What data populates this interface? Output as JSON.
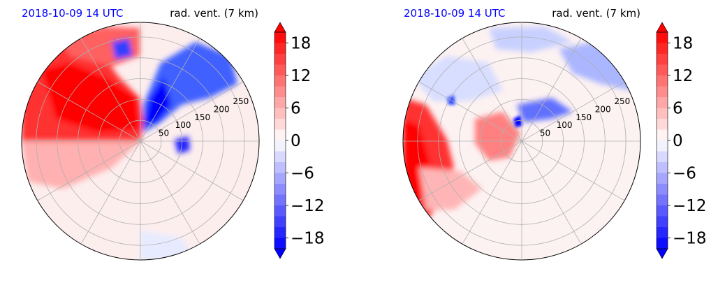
{
  "colors": {
    "title_left": "#0000ff",
    "title_right": "#000000",
    "positive": "#ff0000",
    "negative": "#0000ff",
    "grid": "#b0b0b0"
  },
  "chart_data": [
    {
      "type": "heatmap",
      "projection": "polar",
      "title_left": "2018-10-09 14 UTC",
      "title_right": "rad. vent. (7 km)",
      "radial_ticks": [
        "50",
        "100",
        "150",
        "200",
        "250"
      ],
      "radial_tick_values": [
        50,
        100,
        150,
        200,
        250
      ],
      "r_max": 285,
      "grid": true,
      "colorbar": {
        "ticks": [
          "18",
          "12",
          "6",
          "0",
          "−6",
          "−12",
          "−18"
        ],
        "tick_values": [
          18,
          12,
          6,
          0,
          -6,
          -12,
          -18
        ],
        "range": [
          -20,
          20
        ],
        "extend": "both",
        "levels": 20
      }
    },
    {
      "type": "heatmap",
      "projection": "polar",
      "title_left": "2018-10-09 14 UTC",
      "title_right": "rad. vent. (7 km)",
      "radial_ticks": [
        "50",
        "100",
        "150",
        "200",
        "250"
      ],
      "radial_tick_values": [
        50,
        100,
        150,
        200,
        250
      ],
      "r_max": 285,
      "grid": true,
      "colorbar": {
        "ticks": [
          "18",
          "12",
          "6",
          "0",
          "−6",
          "−12",
          "−18"
        ],
        "tick_values": [
          18,
          12,
          6,
          0,
          -6,
          -12,
          -18
        ],
        "range": [
          -20,
          20
        ],
        "extend": "both",
        "levels": 20
      }
    }
  ]
}
